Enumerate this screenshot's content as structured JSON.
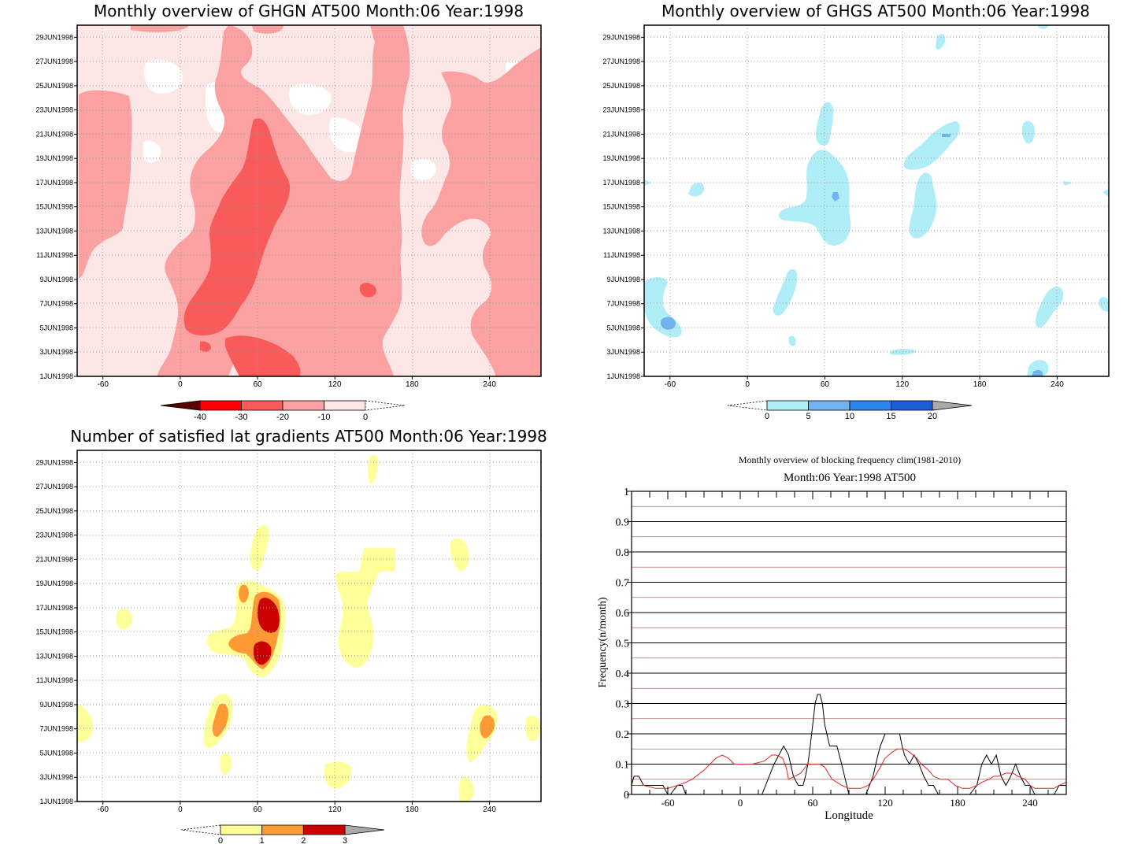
{
  "colors": {
    "red0": "#fde6e6",
    "red1": "#fba1a1",
    "red2": "#f95a5a",
    "red3": "#fa2a2a",
    "red4": "#ff0000",
    "red5": "#5a0000",
    "blue0": "#b0eef7",
    "blue1": "#6fb4f0",
    "blue2": "#2b85ea",
    "blue3": "#1a5fd6",
    "grey": "#aaaaaa",
    "yellow": "#ffff99",
    "orange": "#ff9933",
    "darkred": "#cc0000",
    "clim_line": "#e52222",
    "obs_line": "#000000"
  },
  "chart_data": [
    {
      "type": "heatmap",
      "title": "Monthly overview of GHGN AT500 Month:06 Year:1998",
      "x_ticks": [
        "-60",
        "0",
        "60",
        "120",
        "180",
        "240"
      ],
      "x_tick_values": [
        -60,
        0,
        60,
        120,
        180,
        240
      ],
      "xlim": [
        -80,
        280
      ],
      "y_ticks": [
        "1JUN1998",
        "3JUN1998",
        "5JUN1998",
        "7JUN1998",
        "9JUN1998",
        "11JUN1998",
        "13JUN1998",
        "15JUN1998",
        "17JUN1998",
        "19JUN1998",
        "21JUN1998",
        "23JUN1998",
        "25JUN1998",
        "27JUN1998",
        "29JUN1998"
      ],
      "y_tick_values": [
        1,
        3,
        5,
        7,
        9,
        11,
        13,
        15,
        17,
        19,
        21,
        23,
        25,
        27,
        29
      ],
      "ylim": [
        1,
        30
      ],
      "colorbar": {
        "labels": [
          "-40",
          "-30",
          "-20",
          "-10",
          "0"
        ],
        "levels": [
          -40,
          -30,
          -20,
          -10,
          0
        ],
        "colors": [
          "#5a0000",
          "#ff0000",
          "#fa2a2a",
          "#f95a5a",
          "#fba1a1",
          "#fde6e6",
          "#ffffff"
        ]
      }
    },
    {
      "type": "heatmap",
      "title": "Monthly overview of GHGS AT500 Month:06 Year:1998",
      "x_ticks": [
        "-60",
        "0",
        "60",
        "120",
        "180",
        "240"
      ],
      "x_tick_values": [
        -60,
        0,
        60,
        120,
        180,
        240
      ],
      "xlim": [
        -80,
        280
      ],
      "y_ticks": [
        "1JUN1998",
        "3JUN1998",
        "5JUN1998",
        "7JUN1998",
        "9JUN1998",
        "11JUN1998",
        "13JUN1998",
        "15JUN1998",
        "17JUN1998",
        "19JUN1998",
        "21JUN1998",
        "23JUN1998",
        "25JUN1998",
        "27JUN1998",
        "29JUN1998"
      ],
      "y_tick_values": [
        1,
        3,
        5,
        7,
        9,
        11,
        13,
        15,
        17,
        19,
        21,
        23,
        25,
        27,
        29
      ],
      "ylim": [
        1,
        30
      ],
      "colorbar": {
        "labels": [
          "0",
          "5",
          "10",
          "15",
          "20"
        ],
        "levels": [
          0,
          5,
          10,
          15,
          20
        ],
        "colors": [
          "#ffffff",
          "#b0eef7",
          "#6fb4f0",
          "#2b85ea",
          "#1a5fd6",
          "#aaaaaa"
        ]
      }
    },
    {
      "type": "heatmap",
      "title": "Number of satisfied lat gradients AT500 Month:06 Year:1998",
      "x_ticks": [
        "-60",
        "0",
        "60",
        "120",
        "180",
        "240"
      ],
      "x_tick_values": [
        -60,
        0,
        60,
        120,
        180,
        240
      ],
      "xlim": [
        -80,
        280
      ],
      "y_ticks": [
        "1JUN1998",
        "3JUN1998",
        "5JUN1998",
        "7JUN1998",
        "9JUN1998",
        "11JUN1998",
        "13JUN1998",
        "15JUN1998",
        "17JUN1998",
        "19JUN1998",
        "21JUN1998",
        "23JUN1998",
        "25JUN1998",
        "27JUN1998",
        "29JUN1998"
      ],
      "y_tick_values": [
        1,
        3,
        5,
        7,
        9,
        11,
        13,
        15,
        17,
        19,
        21,
        23,
        25,
        27,
        29
      ],
      "ylim": [
        1,
        30
      ],
      "colorbar": {
        "labels": [
          "0",
          "1",
          "2",
          "3"
        ],
        "levels": [
          0,
          1,
          2,
          3
        ],
        "colors": [
          "#ffffff",
          "#ffff99",
          "#ff9933",
          "#cc0000",
          "#aaaaaa"
        ]
      }
    },
    {
      "type": "line",
      "title": "Monthly overview of blocking frequency clim(1981-2010)",
      "subtitle": "Month:06 Year:1998  AT500",
      "xlabel": "Longitude",
      "ylabel": "Frequency(n/month)",
      "xlim": [
        -90,
        270
      ],
      "ylim": [
        0,
        1
      ],
      "x_ticks": [
        "-60",
        "0",
        "60",
        "120",
        "180",
        "240"
      ],
      "x_tick_values": [
        -60,
        0,
        60,
        120,
        180,
        240
      ],
      "y_ticks": [
        "0",
        "0.1",
        "0.2",
        "0.3",
        "0.4",
        "0.5",
        "0.6",
        "0.7",
        "0.8",
        "0.9",
        "1"
      ],
      "y_tick_values": [
        0,
        0.1,
        0.2,
        0.3,
        0.4,
        0.5,
        0.6,
        0.7,
        0.8,
        0.9,
        1
      ],
      "grid": true,
      "series": [
        {
          "color": "#000000",
          "x": [
            -90,
            -88,
            -84,
            -80,
            -76,
            -72,
            -64,
            -60,
            -58,
            -52,
            -48,
            -45,
            -40,
            -20,
            0,
            10,
            18,
            24,
            28,
            32,
            36,
            40,
            44,
            48,
            52,
            54,
            56,
            58,
            60,
            62,
            64,
            66,
            68,
            70,
            74,
            80,
            84,
            90,
            96,
            104,
            110,
            114,
            116,
            120,
            124,
            128,
            130,
            132,
            134,
            136,
            140,
            144,
            148,
            152,
            156,
            160,
            164,
            172,
            190,
            196,
            200,
            204,
            208,
            212,
            216,
            220,
            224,
            228,
            232,
            236,
            240,
            244,
            248,
            252,
            256,
            260,
            264,
            270
          ],
          "y": [
            0.03,
            0.06,
            0.06,
            0.03,
            0.03,
            0.03,
            0.03,
            0,
            0,
            0.03,
            0.03,
            0,
            0,
            0,
            0,
            0,
            0,
            0.06,
            0.1,
            0.13,
            0.16,
            0.13,
            0.06,
            0.03,
            0.03,
            0.06,
            0.1,
            0.16,
            0.23,
            0.3,
            0.33,
            0.33,
            0.3,
            0.23,
            0.16,
            0.16,
            0.1,
            0,
            0,
            0,
            0.06,
            0.13,
            0.16,
            0.2,
            0.2,
            0.2,
            0.2,
            0.2,
            0.16,
            0.13,
            0.1,
            0.13,
            0.1,
            0.06,
            0.03,
            0.03,
            0,
            0,
            0,
            0.03,
            0.1,
            0.13,
            0.1,
            0.13,
            0.06,
            0.03,
            0.06,
            0.1,
            0.06,
            0.03,
            0.03,
            0,
            0,
            0,
            0,
            0,
            0.03,
            0.03
          ]
        },
        {
          "color": "#e52222",
          "x": [
            -90,
            -80,
            -70,
            -60,
            -52,
            -45,
            -40,
            -30,
            -20,
            -15,
            -10,
            -5,
            0,
            10,
            20,
            26,
            30,
            35,
            38,
            40,
            45,
            50,
            56,
            60,
            62,
            66,
            70,
            76,
            84,
            90,
            100,
            106,
            110,
            116,
            120,
            126,
            130,
            136,
            140,
            146,
            150,
            156,
            160,
            166,
            172,
            178,
            184,
            190,
            196,
            200,
            206,
            210,
            214,
            220,
            226,
            230,
            236,
            240,
            244,
            250,
            256,
            260,
            264,
            270
          ],
          "y": [
            0.03,
            0.03,
            0.02,
            0.02,
            0.03,
            0.04,
            0.05,
            0.08,
            0.12,
            0.13,
            0.12,
            0.1,
            0.1,
            0.1,
            0.11,
            0.13,
            0.13,
            0.12,
            0.09,
            0.05,
            0.06,
            0.07,
            0.1,
            0.1,
            0.1,
            0.1,
            0.09,
            0.05,
            0.03,
            0.02,
            0.02,
            0.03,
            0.05,
            0.09,
            0.12,
            0.14,
            0.15,
            0.15,
            0.14,
            0.12,
            0.1,
            0.08,
            0.06,
            0.05,
            0.05,
            0.03,
            0.02,
            0.02,
            0.03,
            0.04,
            0.05,
            0.06,
            0.06,
            0.07,
            0.07,
            0.06,
            0.05,
            0.03,
            0.02,
            0.02,
            0.02,
            0.02,
            0.03,
            0.04
          ]
        }
      ]
    }
  ]
}
